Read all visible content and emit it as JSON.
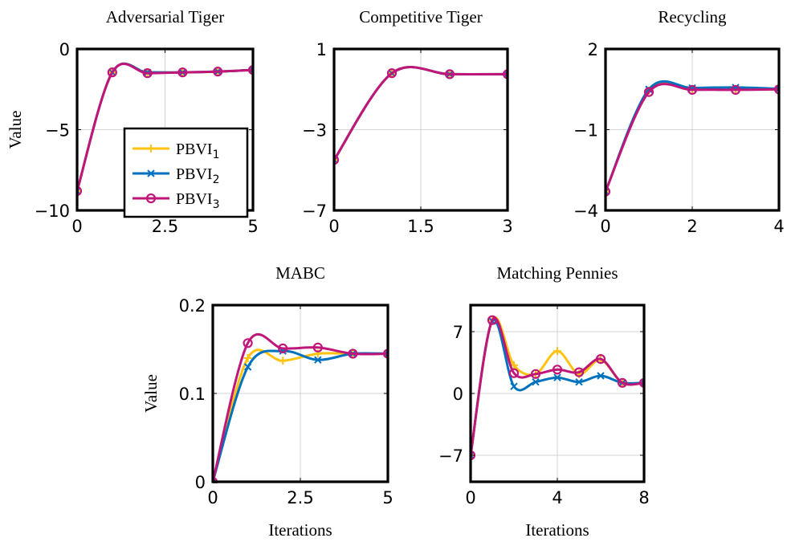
{
  "colors": {
    "PBVI1": "#FFC20E",
    "PBVI2": "#0072BD",
    "PBVI3": "#C0167A",
    "grid": "#c8c8c8",
    "frame": "#000000"
  },
  "legend": {
    "placement": "bottom-right",
    "entries": [
      {
        "key": "PBVI1",
        "base": "PBVI",
        "sub": "1",
        "marker": "plus"
      },
      {
        "key": "PBVI2",
        "base": "PBVI",
        "sub": "2",
        "marker": "x"
      },
      {
        "key": "PBVI3",
        "base": "PBVI",
        "sub": "3",
        "marker": "circle"
      }
    ]
  },
  "chart_data": [
    {
      "type": "line",
      "title": "Adversarial Tiger",
      "xlabel": "",
      "ylabel": "Value",
      "xlim": [
        0,
        5
      ],
      "ylim": [
        -10,
        0
      ],
      "xticks": [
        0,
        2.5,
        5
      ],
      "xtick_labels": [
        "0",
        "2.5",
        "5"
      ],
      "yticks": [
        -10,
        -5,
        0
      ],
      "ytick_labels": [
        "−10",
        "−5",
        "0"
      ],
      "grid": true,
      "legend": true,
      "series": [
        {
          "name": "PBVI1",
          "x": [
            0,
            1,
            2,
            3,
            4,
            5
          ],
          "y": [
            -8.8,
            -1.45,
            -1.45,
            -1.45,
            -1.4,
            -1.3
          ]
        },
        {
          "name": "PBVI2",
          "x": [
            0,
            1,
            2,
            3,
            4,
            5
          ],
          "y": [
            -8.8,
            -1.45,
            -1.45,
            -1.45,
            -1.4,
            -1.3
          ]
        },
        {
          "name": "PBVI3",
          "x": [
            0,
            1,
            2,
            3,
            4,
            5
          ],
          "y": [
            -8.8,
            -1.45,
            -1.5,
            -1.45,
            -1.4,
            -1.3
          ]
        }
      ]
    },
    {
      "type": "line",
      "title": "Competitive Tiger",
      "xlabel": "",
      "ylabel": "",
      "xlim": [
        0,
        3
      ],
      "ylim": [
        -7,
        1
      ],
      "xticks": [
        0,
        1.5,
        3
      ],
      "xtick_labels": [
        "0",
        "1.5",
        "3"
      ],
      "yticks": [
        -7,
        -3,
        1
      ],
      "ytick_labels": [
        "−7",
        "−3",
        "1"
      ],
      "grid": true,
      "series": [
        {
          "name": "PBVI1",
          "x": [
            0,
            1,
            2,
            3
          ],
          "y": [
            -4.5,
            -0.2,
            -0.25,
            -0.25
          ]
        },
        {
          "name": "PBVI2",
          "x": [
            0,
            1,
            2,
            3
          ],
          "y": [
            -4.5,
            -0.2,
            -0.25,
            -0.25
          ]
        },
        {
          "name": "PBVI3",
          "x": [
            0,
            1,
            2,
            3
          ],
          "y": [
            -4.5,
            -0.2,
            -0.25,
            -0.25
          ]
        }
      ]
    },
    {
      "type": "line",
      "title": "Recycling",
      "xlabel": "",
      "ylabel": "",
      "xlim": [
        0,
        4
      ],
      "ylim": [
        -4,
        2
      ],
      "xticks": [
        0,
        2,
        4
      ],
      "xtick_labels": [
        "0",
        "2",
        "4"
      ],
      "yticks": [
        -4,
        -1,
        2
      ],
      "ytick_labels": [
        "−4",
        "−1",
        "2"
      ],
      "grid": true,
      "series": [
        {
          "name": "PBVI1",
          "x": [
            0,
            1,
            2,
            3,
            4
          ],
          "y": [
            -3.3,
            0.45,
            0.5,
            0.5,
            0.5
          ]
        },
        {
          "name": "PBVI2",
          "x": [
            0,
            1,
            2,
            3,
            4
          ],
          "y": [
            -3.3,
            0.5,
            0.55,
            0.57,
            0.52
          ]
        },
        {
          "name": "PBVI3",
          "x": [
            0,
            1,
            2,
            3,
            4
          ],
          "y": [
            -3.3,
            0.4,
            0.48,
            0.48,
            0.5
          ]
        }
      ]
    },
    {
      "type": "line",
      "title": "MABC",
      "xlabel": "Iterations",
      "ylabel": "Value",
      "xlim": [
        0,
        5
      ],
      "ylim": [
        0,
        0.2
      ],
      "xticks": [
        0,
        2.5,
        5
      ],
      "xtick_labels": [
        "0",
        "2.5",
        "5"
      ],
      "yticks": [
        0,
        0.1,
        0.2
      ],
      "ytick_labels": [
        "0",
        "0.1",
        "0.2"
      ],
      "grid": true,
      "series": [
        {
          "name": "PBVI1",
          "x": [
            0,
            1,
            2,
            3,
            4,
            5
          ],
          "y": [
            0,
            0.14,
            0.137,
            0.145,
            0.145,
            0.145
          ]
        },
        {
          "name": "PBVI2",
          "x": [
            0,
            1,
            2,
            3,
            4,
            5
          ],
          "y": [
            0,
            0.13,
            0.148,
            0.138,
            0.145,
            0.145
          ]
        },
        {
          "name": "PBVI3",
          "x": [
            0,
            1,
            2,
            3,
            4,
            5
          ],
          "y": [
            0,
            0.157,
            0.151,
            0.152,
            0.145,
            0.145
          ]
        }
      ]
    },
    {
      "type": "line",
      "title": "Matching Pennies",
      "xlabel": "Iterations",
      "ylabel": "",
      "xlim": [
        0,
        8
      ],
      "ylim": [
        -10,
        10
      ],
      "xticks": [
        0,
        4,
        8
      ],
      "xtick_labels": [
        "0",
        "4",
        "8"
      ],
      "yticks": [
        -7,
        0,
        7
      ],
      "ytick_labels": [
        "−7",
        "0",
        "7"
      ],
      "grid": true,
      "series": [
        {
          "name": "PBVI1",
          "x": [
            0,
            1,
            2,
            3,
            4,
            5,
            6,
            7,
            8
          ],
          "y": [
            -7,
            8.3,
            3.2,
            2.2,
            4.8,
            2.2,
            3.8,
            1.2,
            1.2
          ]
        },
        {
          "name": "PBVI2",
          "x": [
            0,
            1,
            2,
            3,
            4,
            5,
            6,
            7,
            8
          ],
          "y": [
            -7,
            8.2,
            0.8,
            1.3,
            1.8,
            1.3,
            2.0,
            1.2,
            1.2
          ]
        },
        {
          "name": "PBVI3",
          "x": [
            0,
            1,
            2,
            3,
            4,
            5,
            6,
            7,
            8
          ],
          "y": [
            -7,
            8.3,
            2.3,
            2.2,
            2.7,
            2.4,
            3.9,
            1.2,
            1.2
          ]
        }
      ]
    }
  ]
}
